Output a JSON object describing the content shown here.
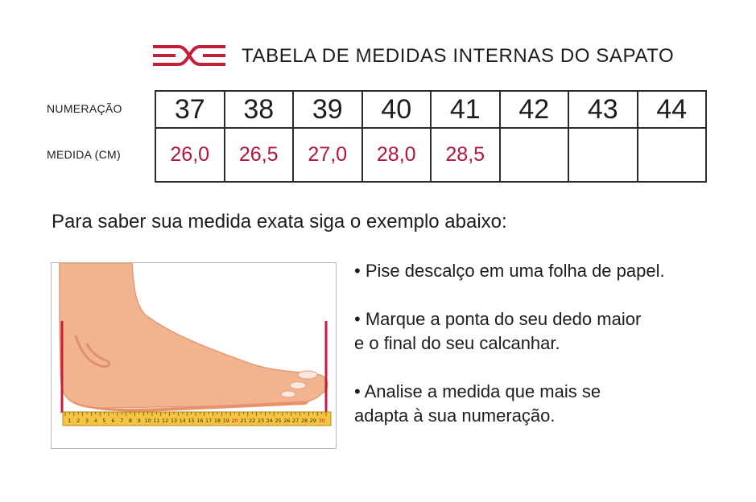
{
  "header": {
    "title": "TABELA DE MEDIDAS INTERNAS DO SAPATO",
    "logo_color": "#c41e3a"
  },
  "table": {
    "numeracao_label": "NUMERAÇÃO",
    "medida_label": "MEDIDA (CM)",
    "columns": [
      {
        "size": "37",
        "measure": "26,0"
      },
      {
        "size": "38",
        "measure": "26,5"
      },
      {
        "size": "39",
        "measure": "27,0"
      },
      {
        "size": "40",
        "measure": "28,0"
      },
      {
        "size": "41",
        "measure": "28,5"
      },
      {
        "size": "42",
        "measure": ""
      },
      {
        "size": "43",
        "measure": ""
      },
      {
        "size": "44",
        "measure": ""
      }
    ],
    "measure_color": "#b3163a"
  },
  "instruction": "Para saber sua medida exata siga o exemplo abaixo:",
  "illustration": {
    "ruler_numbers": [
      "1",
      "2",
      "3",
      "4",
      "5",
      "6",
      "7",
      "8",
      "9",
      "10",
      "11",
      "12",
      "13",
      "14",
      "15",
      "16",
      "17",
      "18",
      "19",
      "20",
      "21",
      "22",
      "23",
      "24",
      "25",
      "26",
      "27",
      "28",
      "29",
      "30"
    ],
    "highlight_numbers": [
      "20",
      "30"
    ],
    "skin_color": "#f2b48f",
    "ruler_color": "#f5c542",
    "marker_color": "#c41e3a"
  },
  "tips": [
    {
      "line1": "• Pise descalço em uma folha de papel.",
      "line2": ""
    },
    {
      "line1": "• Marque a ponta do seu dedo maior",
      "line2": "e o final do seu calcanhar."
    },
    {
      "line1": "• Analise a medida que mais se",
      "line2": "adapta à sua numeração."
    }
  ]
}
